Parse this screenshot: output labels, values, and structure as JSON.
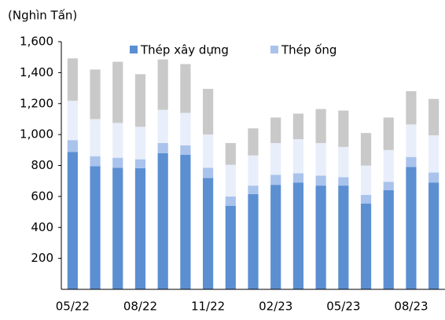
{
  "chart_data": {
    "type": "stacked_bar",
    "y_label": "(Nghìn Tấn)",
    "categories": [
      "05/22",
      null,
      null,
      "08/22",
      null,
      null,
      "11/22",
      null,
      null,
      "02/23",
      null,
      null,
      "05/23",
      null,
      null,
      "08/23",
      null
    ],
    "series": [
      {
        "name": "Thép xây dựng",
        "color": "#5b8fd2",
        "values": [
          888,
          795,
          785,
          783,
          880,
          870,
          720,
          540,
          615,
          675,
          690,
          670,
          670,
          555,
          640,
          790,
          690
        ]
      },
      {
        "name": "Thép ống",
        "color": "#a9c3ec",
        "values": [
          76,
          65,
          65,
          57,
          65,
          60,
          65,
          60,
          55,
          65,
          60,
          65,
          55,
          55,
          55,
          65,
          65
        ]
      },
      {
        "color": "#e8eefa",
        "values": [
          254,
          240,
          225,
          210,
          215,
          210,
          215,
          205,
          195,
          205,
          220,
          210,
          195,
          190,
          205,
          210,
          240
        ]
      },
      {
        "color": "#c9c9c9",
        "values": [
          274,
          320,
          395,
          340,
          325,
          315,
          295,
          140,
          175,
          165,
          165,
          220,
          235,
          210,
          210,
          215,
          235
        ]
      }
    ],
    "ylim": [
      0,
      1600
    ],
    "yticks": [
      200,
      400,
      600,
      800,
      {
        "value": 1000,
        "label": "1,000"
      },
      {
        "value": 1200,
        "label": "1,200"
      },
      {
        "value": 1400,
        "label": "1,400"
      },
      {
        "value": 1600,
        "label": "1,600"
      }
    ],
    "grid": false
  }
}
